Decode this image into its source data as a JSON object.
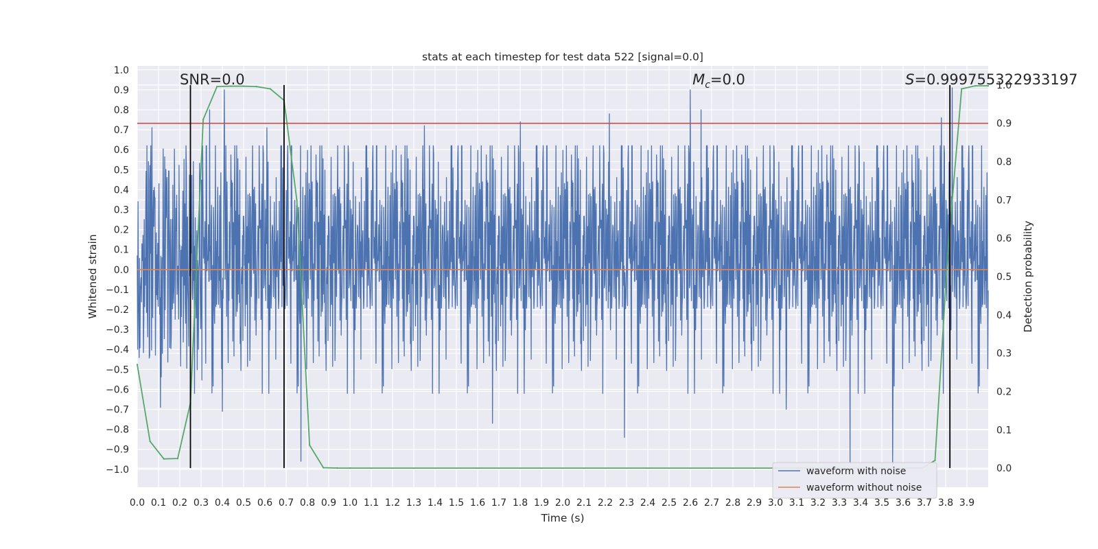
{
  "chart_data": {
    "type": "line",
    "title": "stats at each timestep for test data 522 [signal=0.0]",
    "xlabel": "Time (s)",
    "ylabel": "Whitened strain",
    "y2label": "Detection probability",
    "xlim": [
      0.0,
      4.0
    ],
    "ylim": [
      -1.09,
      1.02
    ],
    "y2lim": [
      -0.05,
      1.05
    ],
    "xticks": [
      "0.0",
      "0.1",
      "0.2",
      "0.3",
      "0.4",
      "0.5",
      "0.6",
      "0.7",
      "0.8",
      "0.9",
      "1.0",
      "1.1",
      "1.2",
      "1.3",
      "1.4",
      "1.5",
      "1.6",
      "1.7",
      "1.8",
      "1.9",
      "2.0",
      "2.1",
      "2.2",
      "2.3",
      "2.4",
      "2.5",
      "2.6",
      "2.7",
      "2.8",
      "2.9",
      "3.0",
      "3.1",
      "3.2",
      "3.3",
      "3.4",
      "3.5",
      "3.6",
      "3.7",
      "3.8",
      "3.9"
    ],
    "yticks": [
      "−1.0",
      "−0.9",
      "−0.8",
      "−0.7",
      "−0.6",
      "−0.5",
      "−0.4",
      "−0.3",
      "−0.2",
      "−0.1",
      "0.0",
      "0.1",
      "0.2",
      "0.3",
      "0.4",
      "0.5",
      "0.6",
      "0.7",
      "0.8",
      "0.9",
      "1.0"
    ],
    "y2ticks": [
      "0.0",
      "0.1",
      "0.2",
      "0.3",
      "0.4",
      "0.5",
      "0.6",
      "0.7",
      "0.8",
      "0.9",
      "1.0"
    ],
    "grid": true,
    "legend_position": "lower-right",
    "series": [
      {
        "name": "waveform with noise",
        "color": "#4c72b0",
        "axis": "left",
        "description": "dense noise oscillating mostly within ±0.45 with spikes up to about ±0.9",
        "spikes": [
          {
            "x": 0.07,
            "y": 0.71
          },
          {
            "x": 0.34,
            "y": 0.8
          },
          {
            "x": 0.41,
            "y": 0.9
          },
          {
            "x": 0.61,
            "y": 0.71
          },
          {
            "x": 1.35,
            "y": 0.72
          },
          {
            "x": 1.8,
            "y": 0.74
          },
          {
            "x": 2.22,
            "y": 0.78
          },
          {
            "x": 2.6,
            "y": 0.9
          },
          {
            "x": 2.65,
            "y": 0.8
          },
          {
            "x": 3.78,
            "y": 0.76
          },
          {
            "x": 3.83,
            "y": 0.91
          },
          {
            "x": 0.11,
            "y": -0.69
          },
          {
            "x": 0.4,
            "y": -0.71
          },
          {
            "x": 0.77,
            "y": -0.96
          },
          {
            "x": 1.67,
            "y": -0.77
          },
          {
            "x": 2.29,
            "y": -0.84
          },
          {
            "x": 3.35,
            "y": -0.97
          },
          {
            "x": 3.55,
            "y": -0.98
          },
          {
            "x": 3.05,
            "y": -0.7
          }
        ]
      },
      {
        "name": "waveform without noise",
        "color": "#dd8452",
        "axis": "left",
        "x": [
          0.0,
          4.0
        ],
        "y": [
          0.0,
          0.0
        ]
      },
      {
        "color": "#55a868",
        "axis": "right",
        "x": [
          0.0,
          0.06,
          0.125,
          0.19,
          0.25,
          0.31,
          0.375,
          0.44,
          0.5,
          0.56,
          0.625,
          0.69,
          0.75,
          0.81,
          0.875,
          0.94,
          1.0,
          3.69,
          3.75,
          3.81,
          3.875,
          3.94,
          4.0
        ],
        "y": [
          0.27,
          0.07,
          0.024,
          0.025,
          0.17,
          0.91,
          0.996,
          0.997,
          0.997,
          0.996,
          0.99,
          0.96,
          0.7,
          0.06,
          0.001,
          0.0,
          0.0,
          0.0,
          0.02,
          0.56,
          0.99,
          0.998,
          0.998
        ]
      }
    ],
    "hlines": [
      {
        "axis": "right",
        "y": 0.9,
        "color": "#c44e52"
      }
    ],
    "vlines": [
      {
        "x": 0.25,
        "color": "#000000"
      },
      {
        "x": 0.69,
        "color": "#000000"
      },
      {
        "x": 3.82,
        "color": "#000000"
      }
    ],
    "annotations": [
      {
        "text": "SNR=0.0",
        "x": 0.2
      },
      {
        "text": "M_c=0.0",
        "symbol": "M",
        "sub": "c",
        "rest": "=0.0",
        "x": 2.61
      },
      {
        "text": "S=0.999755322933197",
        "symbol": "S",
        "rest": "=0.999755322933197",
        "x": 3.61
      }
    ]
  }
}
